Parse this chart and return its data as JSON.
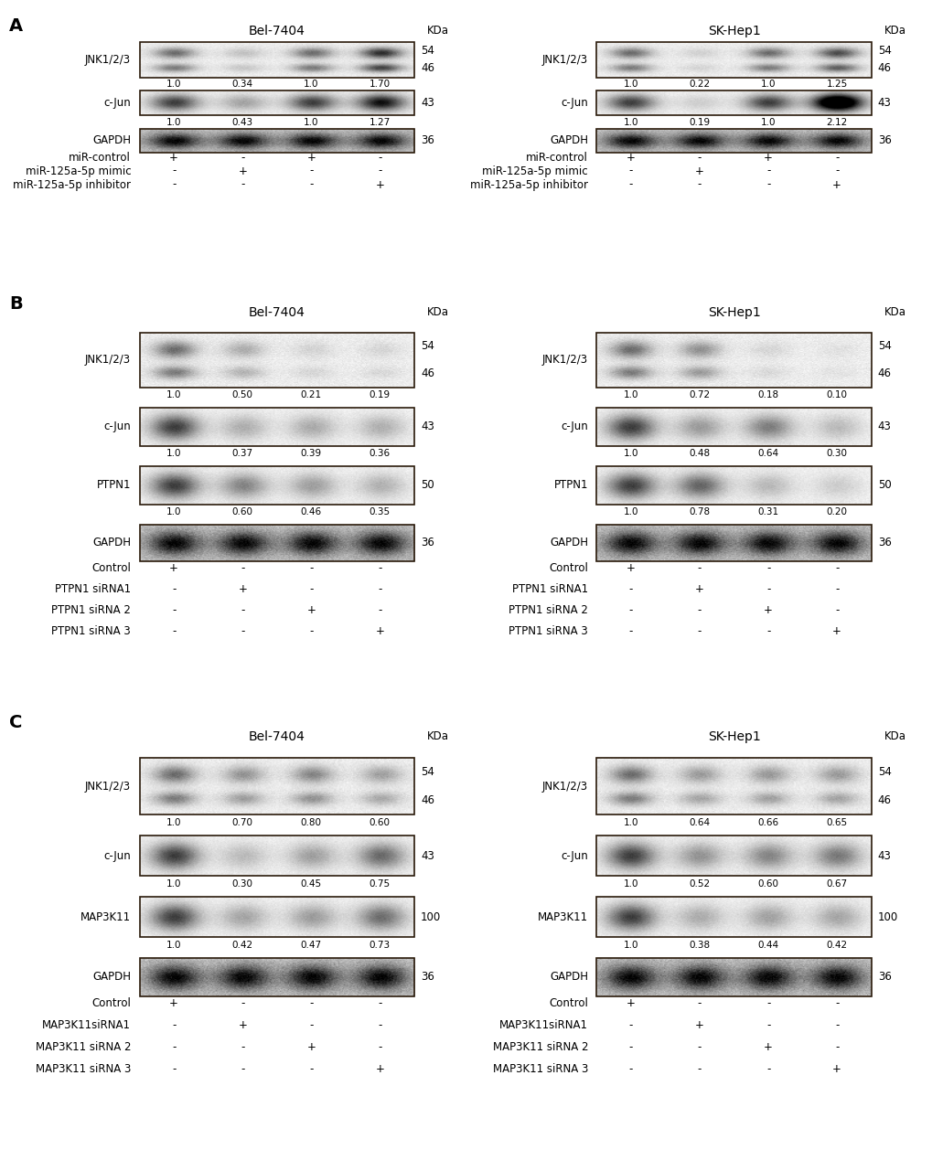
{
  "panel_A": {
    "left": {
      "title": "Bel-7404",
      "bands": {
        "JNK123": {
          "kda_top": "54",
          "kda_bot": "46",
          "values": [
            "1.0",
            "0.34",
            "1.0",
            "1.70"
          ],
          "n_lanes": 4,
          "double": true,
          "gapdh": false
        },
        "cJun": {
          "kda": "43",
          "values": [
            "1.0",
            "0.43",
            "1.0",
            "1.27"
          ],
          "n_lanes": 4,
          "double": false,
          "gapdh": false
        },
        "GAPDH": {
          "kda": "36",
          "values": [
            "1.0",
            "1.0",
            "1.0",
            "1.0"
          ],
          "n_lanes": 4,
          "double": false,
          "gapdh": true
        }
      },
      "labels": [
        "miR-control",
        "miR-125a-5p mimic",
        "miR-125a-5p inhibitor"
      ],
      "signs": [
        [
          "+",
          "-",
          "+",
          "-"
        ],
        [
          "-",
          "+",
          "-",
          "-"
        ],
        [
          "-",
          "-",
          "-",
          "+"
        ]
      ]
    },
    "right": {
      "title": "SK-Hep1",
      "bands": {
        "JNK123": {
          "kda_top": "54",
          "kda_bot": "46",
          "values": [
            "1.0",
            "0.22",
            "1.0",
            "1.25"
          ],
          "n_lanes": 4,
          "double": true,
          "gapdh": false
        },
        "cJun": {
          "kda": "43",
          "values": [
            "1.0",
            "0.19",
            "1.0",
            "2.12"
          ],
          "n_lanes": 4,
          "double": false,
          "gapdh": false
        },
        "GAPDH": {
          "kda": "36",
          "values": [
            "1.0",
            "1.0",
            "1.0",
            "1.0"
          ],
          "n_lanes": 4,
          "double": false,
          "gapdh": true
        }
      },
      "labels": [
        "miR-control",
        "miR-125a-5p mimic",
        "miR-125a-5p inhibitor"
      ],
      "signs": [
        [
          "+",
          "-",
          "+",
          "-"
        ],
        [
          "-",
          "+",
          "-",
          "-"
        ],
        [
          "-",
          "-",
          "-",
          "+"
        ]
      ]
    }
  },
  "panel_B": {
    "left": {
      "title": "Bel-7404",
      "bands": {
        "JNK123": {
          "kda_top": "54",
          "kda_bot": "46",
          "values": [
            "1.0",
            "0.50",
            "0.21",
            "0.19"
          ],
          "n_lanes": 4,
          "double": true,
          "gapdh": false
        },
        "cJun": {
          "kda": "43",
          "values": [
            "1.0",
            "0.37",
            "0.39",
            "0.36"
          ],
          "n_lanes": 4,
          "double": false,
          "gapdh": false
        },
        "PTPN1": {
          "kda": "50",
          "values": [
            "1.0",
            "0.60",
            "0.46",
            "0.35"
          ],
          "n_lanes": 4,
          "double": false,
          "gapdh": false
        },
        "GAPDH": {
          "kda": "36",
          "values": [
            "1.0",
            "1.0",
            "1.0",
            "1.0"
          ],
          "n_lanes": 4,
          "double": false,
          "gapdh": true
        }
      },
      "labels": [
        "Control",
        "PTPN1 siRNA1",
        "PTPN1 siRNA 2",
        "PTPN1 siRNA 3"
      ],
      "signs": [
        [
          "+",
          "-",
          "-",
          "-"
        ],
        [
          "-",
          "+",
          "-",
          "-"
        ],
        [
          "-",
          "-",
          "+",
          "-"
        ],
        [
          "-",
          "-",
          "-",
          "+"
        ]
      ]
    },
    "right": {
      "title": "SK-Hep1",
      "bands": {
        "JNK123": {
          "kda_top": "54",
          "kda_bot": "46",
          "values": [
            "1.0",
            "0.72",
            "0.18",
            "0.10"
          ],
          "n_lanes": 4,
          "double": true,
          "gapdh": false
        },
        "cJun": {
          "kda": "43",
          "values": [
            "1.0",
            "0.48",
            "0.64",
            "0.30"
          ],
          "n_lanes": 4,
          "double": false,
          "gapdh": false
        },
        "PTPN1": {
          "kda": "50",
          "values": [
            "1.0",
            "0.78",
            "0.31",
            "0.20"
          ],
          "n_lanes": 4,
          "double": false,
          "gapdh": false
        },
        "GAPDH": {
          "kda": "36",
          "values": [
            "1.0",
            "1.0",
            "1.0",
            "1.0"
          ],
          "n_lanes": 4,
          "double": false,
          "gapdh": true
        }
      },
      "labels": [
        "Control",
        "PTPN1 siRNA1",
        "PTPN1 siRNA 2",
        "PTPN1 siRNA 3"
      ],
      "signs": [
        [
          "+",
          "-",
          "-",
          "-"
        ],
        [
          "-",
          "+",
          "-",
          "-"
        ],
        [
          "-",
          "-",
          "+",
          "-"
        ],
        [
          "-",
          "-",
          "-",
          "+"
        ]
      ]
    }
  },
  "panel_C": {
    "left": {
      "title": "Bel-7404",
      "bands": {
        "JNK123": {
          "kda_top": "54",
          "kda_bot": "46",
          "values": [
            "1.0",
            "0.70",
            "0.80",
            "0.60"
          ],
          "n_lanes": 4,
          "double": true,
          "gapdh": false
        },
        "cJun": {
          "kda": "43",
          "values": [
            "1.0",
            "0.30",
            "0.45",
            "0.75"
          ],
          "n_lanes": 4,
          "double": false,
          "gapdh": false
        },
        "MAP3K11": {
          "kda": "100",
          "values": [
            "1.0",
            "0.42",
            "0.47",
            "0.73"
          ],
          "n_lanes": 4,
          "double": false,
          "gapdh": false
        },
        "GAPDH": {
          "kda": "36",
          "values": [
            "1.0",
            "1.0",
            "1.0",
            "1.0"
          ],
          "n_lanes": 4,
          "double": false,
          "gapdh": true
        }
      },
      "labels": [
        "Control",
        "MAP3K11siRNA1",
        "MAP3K11 siRNA 2",
        "MAP3K11 siRNA 3"
      ],
      "signs": [
        [
          "+",
          "-",
          "-",
          "-"
        ],
        [
          "-",
          "+",
          "-",
          "-"
        ],
        [
          "-",
          "-",
          "+",
          "-"
        ],
        [
          "-",
          "-",
          "-",
          "+"
        ]
      ]
    },
    "right": {
      "title": "SK-Hep1",
      "bands": {
        "JNK123": {
          "kda_top": "54",
          "kda_bot": "46",
          "values": [
            "1.0",
            "0.64",
            "0.66",
            "0.65"
          ],
          "n_lanes": 4,
          "double": true,
          "gapdh": false
        },
        "cJun": {
          "kda": "43",
          "values": [
            "1.0",
            "0.52",
            "0.60",
            "0.67"
          ],
          "n_lanes": 4,
          "double": false,
          "gapdh": false
        },
        "MAP3K11": {
          "kda": "100",
          "values": [
            "1.0",
            "0.38",
            "0.44",
            "0.42"
          ],
          "n_lanes": 4,
          "double": false,
          "gapdh": false
        },
        "GAPDH": {
          "kda": "36",
          "values": [
            "1.0",
            "1.0",
            "1.0",
            "1.0"
          ],
          "n_lanes": 4,
          "double": false,
          "gapdh": true
        }
      },
      "labels": [
        "Control",
        "MAP3K11siRNA1",
        "MAP3K11 siRNA 2",
        "MAP3K11 siRNA 3"
      ],
      "signs": [
        [
          "+",
          "-",
          "-",
          "-"
        ],
        [
          "-",
          "+",
          "-",
          "-"
        ],
        [
          "-",
          "-",
          "+",
          "-"
        ],
        [
          "-",
          "-",
          "-",
          "+"
        ]
      ]
    }
  },
  "bg_color": "#ffffff",
  "box_edge_color": "#2a1a0a",
  "text_color": "#000000",
  "fontsize_title": 10,
  "fontsize_label": 8.5,
  "fontsize_kda": 8.5,
  "fontsize_values": 7.5,
  "fontsize_signs": 8.5,
  "fontsize_panel": 14
}
